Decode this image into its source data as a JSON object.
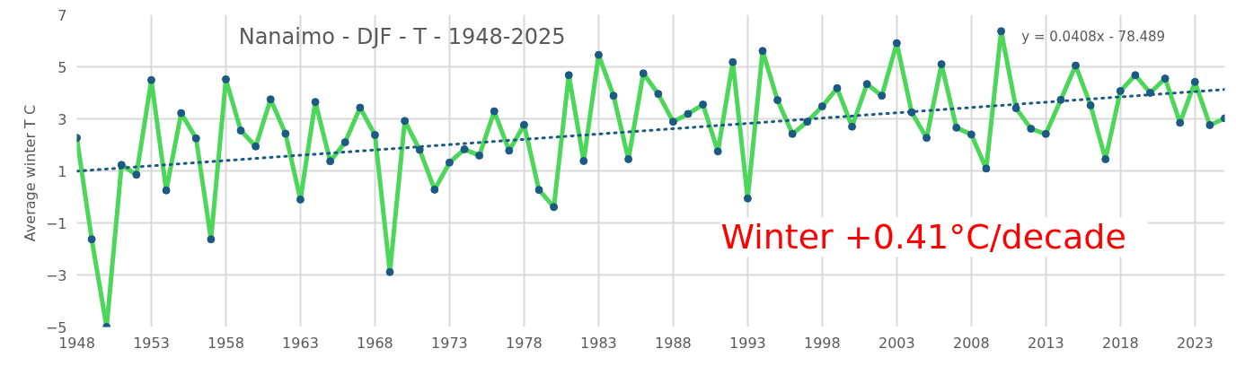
{
  "chart_data": {
    "type": "line",
    "title": "Nanaimo - DJF - T - 1948-2025",
    "ylabel": "Average winter  T C",
    "x": [
      1948,
      1949,
      1950,
      1951,
      1952,
      1953,
      1954,
      1955,
      1956,
      1957,
      1958,
      1959,
      1960,
      1961,
      1962,
      1963,
      1964,
      1965,
      1966,
      1967,
      1968,
      1969,
      1970,
      1971,
      1972,
      1973,
      1974,
      1975,
      1976,
      1977,
      1978,
      1979,
      1980,
      1981,
      1982,
      1983,
      1984,
      1985,
      1986,
      1987,
      1988,
      1989,
      1990,
      1991,
      1992,
      1993,
      1994,
      1995,
      1996,
      1997,
      1998,
      1999,
      2000,
      2001,
      2002,
      2003,
      2004,
      2005,
      2006,
      2007,
      2008,
      2009,
      2010,
      2011,
      2012,
      2013,
      2014,
      2015,
      2016,
      2017,
      2018,
      2019,
      2020,
      2021,
      2022,
      2023,
      2024,
      2025
    ],
    "series": [
      {
        "color": "#4cd65a",
        "marker": "none",
        "values": [
          2.27,
          -1.63,
          -5.0,
          1.23,
          0.85,
          4.49,
          0.25,
          3.22,
          2.25,
          -1.63,
          4.52,
          2.55,
          1.94,
          3.75,
          2.43,
          -0.1,
          3.65,
          1.37,
          2.1,
          3.43,
          2.38,
          -2.89,
          2.92,
          1.81,
          0.28,
          1.32,
          1.83,
          1.59,
          3.29,
          1.78,
          2.77,
          0.27,
          -0.39,
          4.68,
          1.38,
          5.46,
          3.89,
          1.45,
          4.75,
          3.96,
          2.89,
          3.19,
          3.55,
          1.75,
          5.18,
          -0.06,
          5.61,
          3.72,
          2.42,
          2.89,
          3.48,
          4.18,
          2.7,
          4.34,
          3.89,
          5.91,
          3.25,
          2.27,
          5.1,
          2.66,
          2.4,
          1.09,
          6.37,
          3.41,
          2.62,
          2.42,
          3.73,
          5.05,
          3.52,
          1.45,
          4.07,
          4.68,
          4.0,
          4.55,
          2.85,
          4.42,
          2.76,
          3.02
        ]
      },
      {
        "type": "scatter",
        "color": "#1b5a82",
        "marker": "circle",
        "values": [
          2.27,
          -1.63,
          -5.0,
          1.23,
          0.85,
          4.49,
          0.25,
          3.22,
          2.25,
          -1.63,
          4.52,
          2.55,
          1.94,
          3.75,
          2.43,
          -0.1,
          3.65,
          1.37,
          2.1,
          3.43,
          2.38,
          -2.89,
          2.92,
          1.81,
          0.28,
          1.32,
          1.83,
          1.59,
          3.29,
          1.78,
          2.77,
          0.27,
          -0.39,
          4.68,
          1.38,
          5.46,
          3.89,
          1.45,
          4.75,
          3.96,
          2.89,
          3.19,
          3.55,
          1.75,
          5.18,
          -0.06,
          5.61,
          3.72,
          2.42,
          2.89,
          3.48,
          4.18,
          2.7,
          4.34,
          3.89,
          5.91,
          3.25,
          2.27,
          5.1,
          2.66,
          2.4,
          1.09,
          6.37,
          3.41,
          2.62,
          2.42,
          3.73,
          5.05,
          3.52,
          1.45,
          4.07,
          4.68,
          4.0,
          4.55,
          2.85,
          4.42,
          2.76,
          3.02
        ]
      },
      {
        "type": "line",
        "color": "#1b5a82",
        "line_style": "dotted",
        "marker": "none",
        "x": [
          1948,
          2025
        ],
        "values": [
          0.99,
          4.13
        ]
      }
    ],
    "annotations": [
      "y = 0.0408x - 78.489",
      "Winter   +0.41°C/decade"
    ],
    "xlim": [
      1948,
      2025
    ],
    "ylim": [
      -5,
      7
    ],
    "xticks": [
      1948,
      1953,
      1958,
      1963,
      1968,
      1973,
      1978,
      1983,
      1988,
      1993,
      1998,
      2003,
      2008,
      2013,
      2018,
      2023
    ],
    "yticks": [
      -5,
      -3,
      -1,
      1,
      3,
      5,
      7
    ],
    "grid": true
  }
}
